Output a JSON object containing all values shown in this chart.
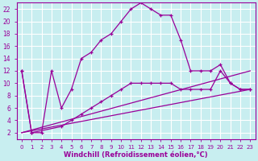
{
  "xlabel": "Windchill (Refroidissement éolien,°C)",
  "bg_color": "#c8eef0",
  "line_color": "#990099",
  "grid_color": "#ffffff",
  "xlim": [
    -0.5,
    23.5
  ],
  "ylim": [
    1,
    23
  ],
  "xticks": [
    0,
    1,
    2,
    3,
    4,
    5,
    6,
    7,
    8,
    9,
    10,
    11,
    12,
    13,
    14,
    15,
    16,
    17,
    18,
    19,
    20,
    21,
    22,
    23
  ],
  "yticks": [
    2,
    4,
    6,
    8,
    10,
    12,
    14,
    16,
    18,
    20,
    22
  ],
  "series1_x": [
    0,
    1,
    2,
    3,
    4,
    5,
    6,
    7,
    8,
    9,
    10,
    11,
    12,
    13,
    14,
    15,
    16,
    17,
    18,
    19,
    20,
    21,
    22,
    23
  ],
  "series1_y": [
    12,
    2,
    2,
    12,
    6,
    9,
    14,
    15,
    17,
    18,
    20,
    22,
    23,
    22,
    21,
    21,
    17,
    12,
    12,
    12,
    13,
    10,
    9,
    9
  ],
  "series2_x": [
    0,
    1,
    4,
    5,
    6,
    7,
    8,
    9,
    10,
    11,
    12,
    13,
    14,
    15,
    16,
    17,
    18,
    19,
    20,
    21,
    22,
    23
  ],
  "series2_y": [
    12,
    2,
    3,
    4,
    5,
    6,
    7,
    8,
    9,
    10,
    10,
    10,
    10,
    10,
    9,
    9,
    9,
    9,
    12,
    10,
    9,
    9
  ],
  "series3_x": [
    0,
    23
  ],
  "series3_y": [
    2,
    9
  ],
  "series4_x": [
    0,
    23
  ],
  "series4_y": [
    2,
    12
  ]
}
